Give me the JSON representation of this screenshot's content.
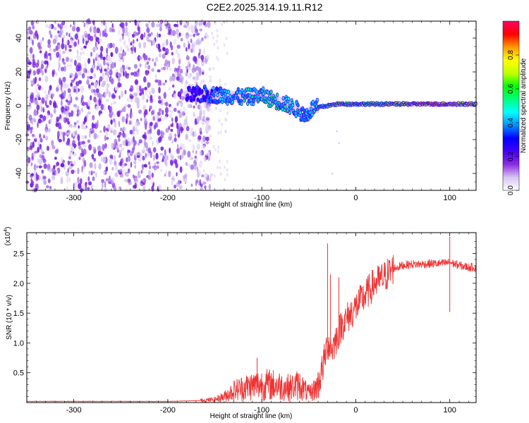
{
  "figure_title": "C2E2.2025.314.19.11.R12",
  "colorbar": {
    "label": "Normalized spectral amplitude",
    "ticks": [
      "0.0",
      "0.2",
      "0.4",
      "0.6",
      "0.8"
    ],
    "colors": [
      "#ffffff",
      "#d8c4f2",
      "#8a2be2",
      "#4400ff",
      "#0000ff",
      "#0090ff",
      "#00ffff",
      "#00ff80",
      "#00ff00",
      "#c0ff00",
      "#ffff00",
      "#ff9900",
      "#ff0000",
      "#ff0066"
    ]
  },
  "chart_data": [
    {
      "type": "heatmap",
      "title": "",
      "xlabel": "Height of straight line (km)",
      "ylabel": "Frequency (Hz)",
      "xlim": [
        -350,
        128
      ],
      "ylim": [
        -50,
        50
      ],
      "xticks": [
        -300,
        -200,
        -100,
        0,
        100
      ],
      "yticks": [
        -40,
        -20,
        0,
        20,
        40
      ],
      "xtick_labels": [
        "-300",
        "-200",
        "-100",
        "0",
        "100"
      ],
      "ytick_labels": [
        "-40",
        "-20",
        "0",
        "20",
        "40"
      ],
      "noise_region_x": [
        -350,
        -155
      ],
      "ridge": {
        "description": "Frequency ridge of peak spectral amplitude vs height",
        "x": [
          -180,
          -160,
          -140,
          -120,
          -100,
          -90,
          -80,
          -70,
          -60,
          -55,
          -50,
          -45,
          -40,
          -30,
          -20,
          -10,
          0,
          20,
          40,
          60,
          80,
          100,
          120,
          128
        ],
        "y": [
          6,
          7,
          6,
          5,
          6,
          4,
          2,
          0,
          -3,
          -6,
          -4,
          -1,
          -1,
          0,
          1,
          1,
          1,
          1,
          1,
          1,
          1,
          1,
          1,
          1
        ],
        "amplitude": [
          0.25,
          0.35,
          0.45,
          0.5,
          0.5,
          0.55,
          0.55,
          0.55,
          0.5,
          0.45,
          0.45,
          0.5,
          0.55,
          0.6,
          0.7,
          0.65,
          0.6,
          0.65,
          0.7,
          0.75,
          0.85,
          0.8,
          0.75,
          0.7
        ]
      },
      "colorbar_range": [
        0,
        1
      ]
    },
    {
      "type": "line",
      "title": "",
      "xlabel": "Height of straight line (km)",
      "ylabel": "SNR (10 * v/v)",
      "ylabel_multiplier": "(x10",
      "ylabel_multiplier_exp": "4",
      "ylabel_multiplier_close": ")",
      "xlim": [
        -350,
        128
      ],
      "ylim": [
        0,
        2.85
      ],
      "xticks": [
        -300,
        -200,
        -100,
        0,
        100
      ],
      "yticks": [
        0.5,
        1.0,
        1.5,
        2.0,
        2.5
      ],
      "xtick_labels": [
        "-300",
        "-200",
        "-100",
        "0",
        "100"
      ],
      "ytick_labels": [
        "0.5",
        "1.0",
        "1.5",
        "2.0",
        "2.5"
      ],
      "series": [
        {
          "name": "SNR",
          "color": "#ee3333",
          "x": [
            -350,
            -300,
            -250,
            -200,
            -170,
            -150,
            -140,
            -130,
            -120,
            -110,
            -100,
            -90,
            -80,
            -70,
            -60,
            -50,
            -45,
            -40,
            -35,
            -30,
            -25,
            -20,
            -15,
            -10,
            -5,
            0,
            5,
            10,
            15,
            20,
            25,
            30,
            40,
            50,
            60,
            70,
            80,
            90,
            100,
            110,
            120,
            128
          ],
          "y": [
            0.02,
            0.02,
            0.02,
            0.02,
            0.03,
            0.05,
            0.1,
            0.2,
            0.25,
            0.28,
            0.3,
            0.3,
            0.28,
            0.25,
            0.3,
            0.15,
            0.2,
            0.3,
            0.6,
            1.0,
            0.9,
            1.1,
            1.3,
            1.4,
            1.5,
            1.6,
            1.7,
            1.8,
            1.9,
            2.0,
            2.05,
            2.1,
            2.25,
            2.3,
            2.32,
            2.32,
            2.33,
            2.33,
            2.35,
            2.3,
            2.27,
            2.27
          ]
        }
      ],
      "spikes": [
        {
          "x": -30,
          "y": 2.67
        },
        {
          "x": -27,
          "y": 2.15
        },
        {
          "x": -18,
          "y": 2.1
        },
        {
          "x": -105,
          "y": 0.75
        },
        {
          "x": 100,
          "y": 2.78
        },
        {
          "x": 100,
          "y": 1.52
        }
      ]
    }
  ]
}
